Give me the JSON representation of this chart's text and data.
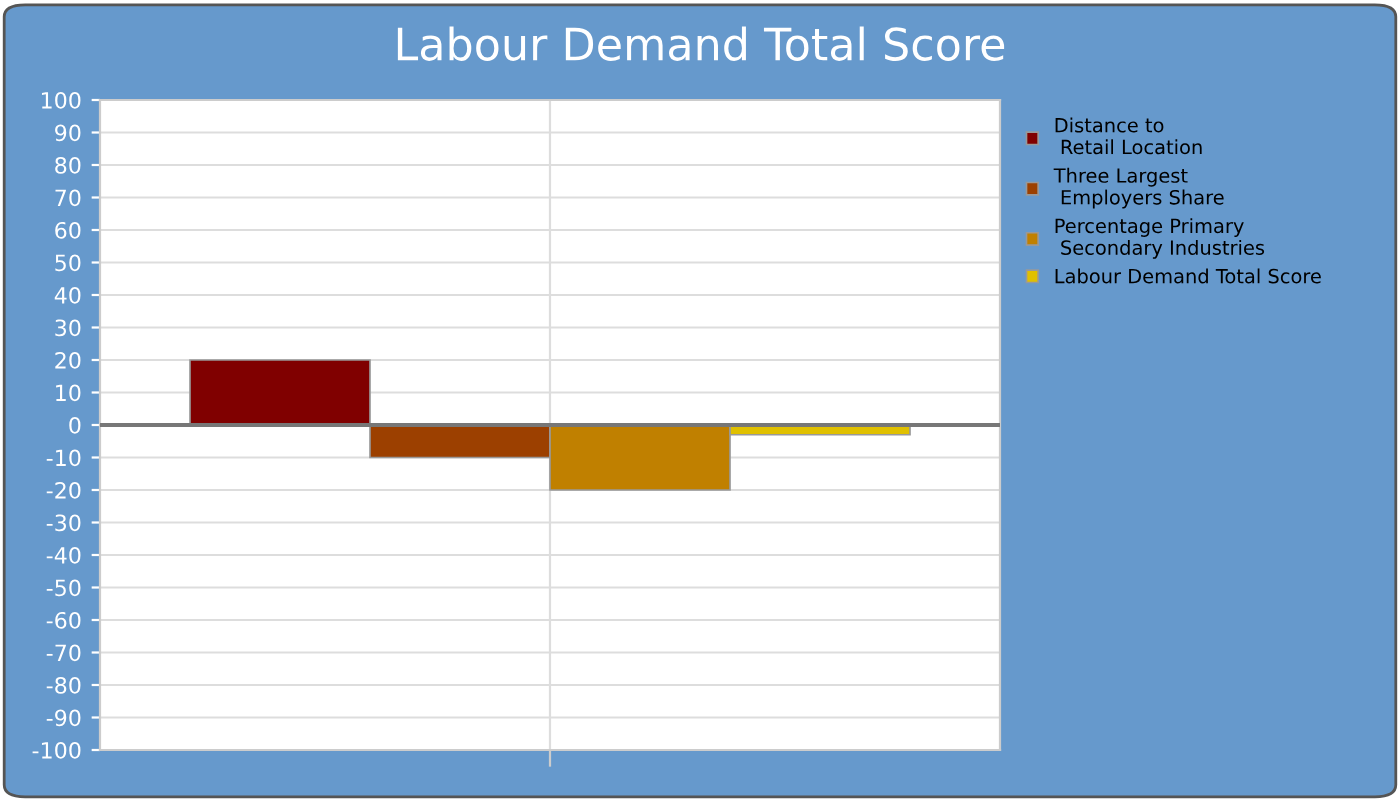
{
  "chart_data": {
    "type": "bar",
    "title": "Labour Demand Total Score",
    "categories": [
      null
    ],
    "series": [
      {
        "name": "Distance to\n Retail Location",
        "color": "#800000",
        "values": [
          20
        ]
      },
      {
        "name": "Three Largest\n Employers Share",
        "color": "#9c4000",
        "values": [
          -10
        ]
      },
      {
        "name": "Percentage Primary\n Secondary Industries",
        "color": "#c08000",
        "values": [
          -20
        ]
      },
      {
        "name": "Labour Demand Total Score",
        "color": "#e0c000",
        "values": [
          -3
        ]
      }
    ],
    "ylim": [
      -100,
      100
    ],
    "yticks": [
      -100,
      -90,
      -80,
      -70,
      -60,
      -50,
      -40,
      -30,
      -20,
      -10,
      0,
      10,
      20,
      30,
      40,
      50,
      60,
      70,
      80,
      90,
      100
    ],
    "grid": true,
    "legend": "right"
  }
}
